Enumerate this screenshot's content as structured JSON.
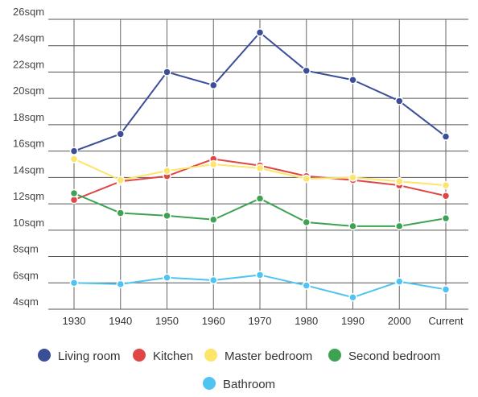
{
  "chart_data": {
    "type": "line",
    "title": "",
    "xlabel": "",
    "ylabel": "",
    "categories": [
      "1930",
      "1940",
      "1950",
      "1960",
      "1970",
      "1980",
      "1990",
      "2000",
      "Current"
    ],
    "y_ticks": [
      "4sqm",
      "6sqm",
      "8sqm",
      "10sqm",
      "12sqm",
      "14sqm",
      "16sqm",
      "18sqm",
      "20sqm",
      "22sqm",
      "24sqm",
      "26sqm"
    ],
    "ylim": [
      4,
      26
    ],
    "grid": true,
    "legend_position": "bottom",
    "series": [
      {
        "name": "Living room",
        "color": "#3b4f99",
        "values": [
          16.0,
          17.3,
          22.0,
          21.0,
          25.0,
          22.1,
          21.4,
          19.8,
          17.1
        ]
      },
      {
        "name": "Kitchen",
        "color": "#e04646",
        "values": [
          12.3,
          13.7,
          14.1,
          15.4,
          14.9,
          14.1,
          13.8,
          13.4,
          12.6
        ]
      },
      {
        "name": "Master bedroom",
        "color": "#fce56a",
        "values": [
          15.4,
          13.8,
          14.5,
          15.0,
          14.7,
          13.9,
          14.0,
          13.7,
          13.4
        ]
      },
      {
        "name": "Second bedroom",
        "color": "#3ea252",
        "values": [
          12.8,
          11.3,
          11.1,
          10.8,
          12.4,
          10.6,
          10.3,
          10.3,
          10.9
        ]
      },
      {
        "name": "Bathroom",
        "color": "#4fc4f0",
        "values": [
          6.0,
          5.9,
          6.4,
          6.2,
          6.6,
          5.8,
          4.9,
          6.1,
          5.5
        ]
      }
    ]
  }
}
